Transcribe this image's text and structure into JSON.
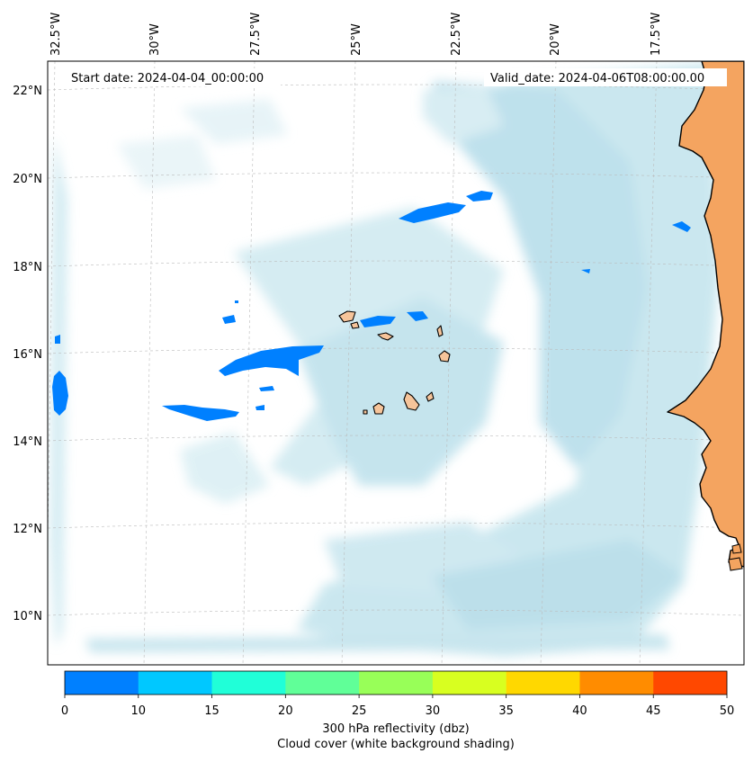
{
  "map": {
    "start_label": "Start date: 2024-04-04_00:00:00",
    "valid_label": "Valid_date: 2024-04-06T08:00:00.00",
    "lon_labels": [
      "32.5°W",
      "30°W",
      "27.5°W",
      "25°W",
      "22.5°W",
      "20°W",
      "17.5°W"
    ],
    "lat_labels": [
      "22°N",
      "20°N",
      "18°N",
      "16°N",
      "14°N",
      "12°N",
      "10°N"
    ]
  },
  "colorbar": {
    "ticks": [
      "0",
      "10",
      "15",
      "20",
      "25",
      "30",
      "35",
      "40",
      "45",
      "50"
    ],
    "colors": [
      "#0080ff",
      "#00c8ff",
      "#20ffd8",
      "#60ff98",
      "#98ff58",
      "#d8ff20",
      "#ffd800",
      "#ff8c00",
      "#ff4800"
    ],
    "label": "300 hPa reflectivity (dbz)",
    "sublabel": "Cloud cover (white background shading)"
  },
  "colors": {
    "land": "#f4a460",
    "island": "#f6c49a",
    "cloud": "#aedbe8",
    "echo": "#0080ff"
  }
}
